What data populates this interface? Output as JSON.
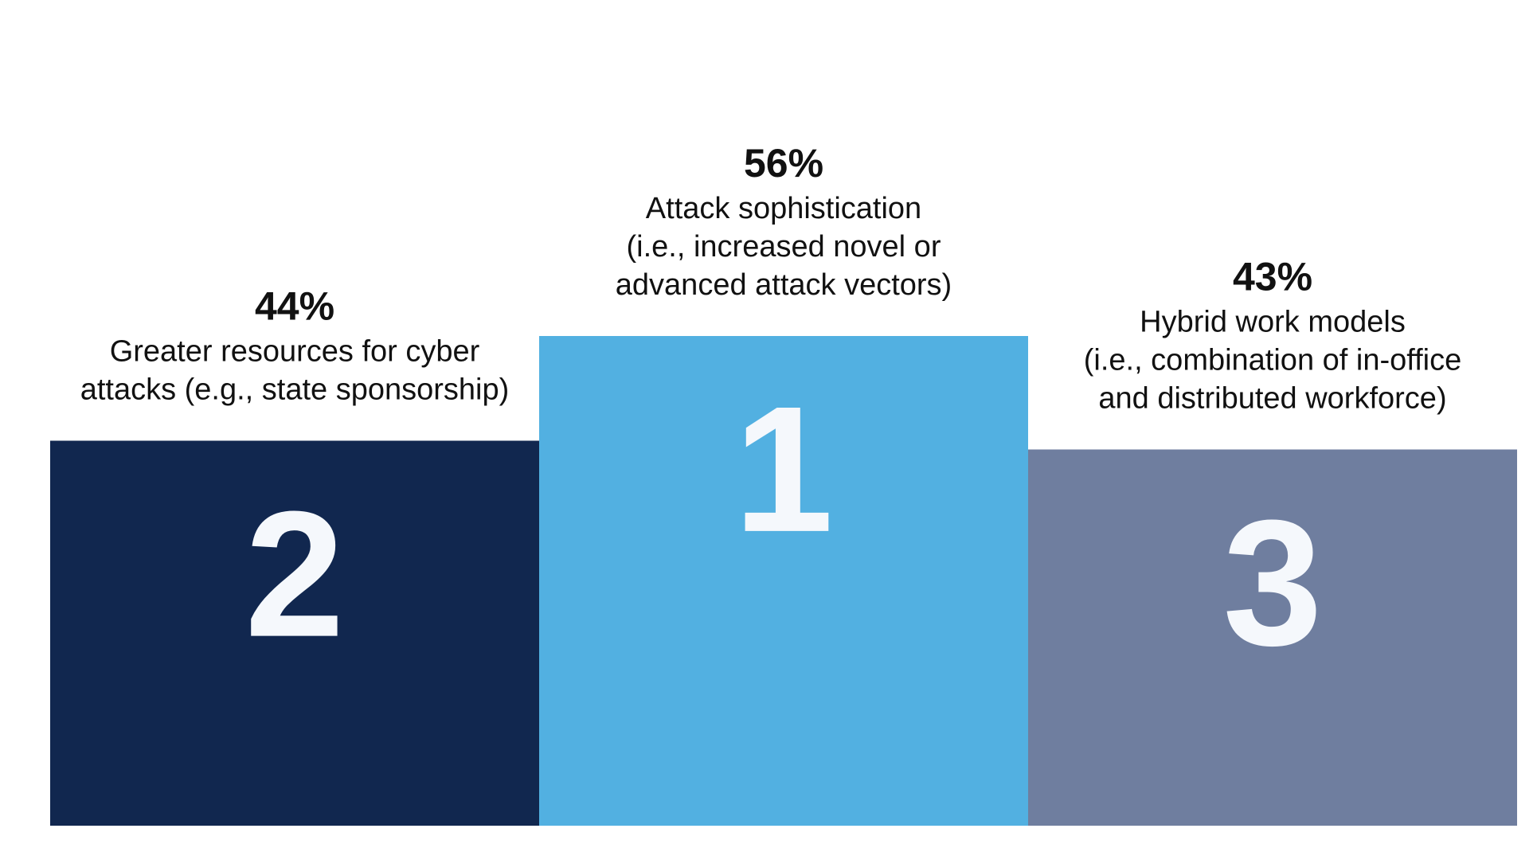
{
  "chart_data": {
    "type": "bar",
    "categories": [
      "Greater resources for cyber attacks (e.g., state sponsorship)",
      "Attack sophistication (i.e., increased novel or advanced attack vectors)",
      "Hybrid work models (i.e., combination of in-office and distributed workforce)"
    ],
    "values": [
      44,
      56,
      43
    ],
    "value_labels": [
      "44%",
      "56%",
      "43%"
    ],
    "ranks": [
      "2",
      "1",
      "3"
    ],
    "description_lines": [
      [
        "Greater resources for cyber",
        "attacks (e.g., state sponsorship)"
      ],
      [
        "Attack sophistication",
        "(i.e., increased novel or",
        "advanced attack vectors)"
      ],
      [
        "Hybrid work models",
        "(i.e., combination of in-office",
        "and distributed workforce)"
      ]
    ],
    "colors": [
      "#11274f",
      "#52b0e1",
      "#6f7e9f"
    ],
    "title": "",
    "xlabel": "",
    "ylabel": "",
    "grid": false,
    "legend": "none"
  }
}
